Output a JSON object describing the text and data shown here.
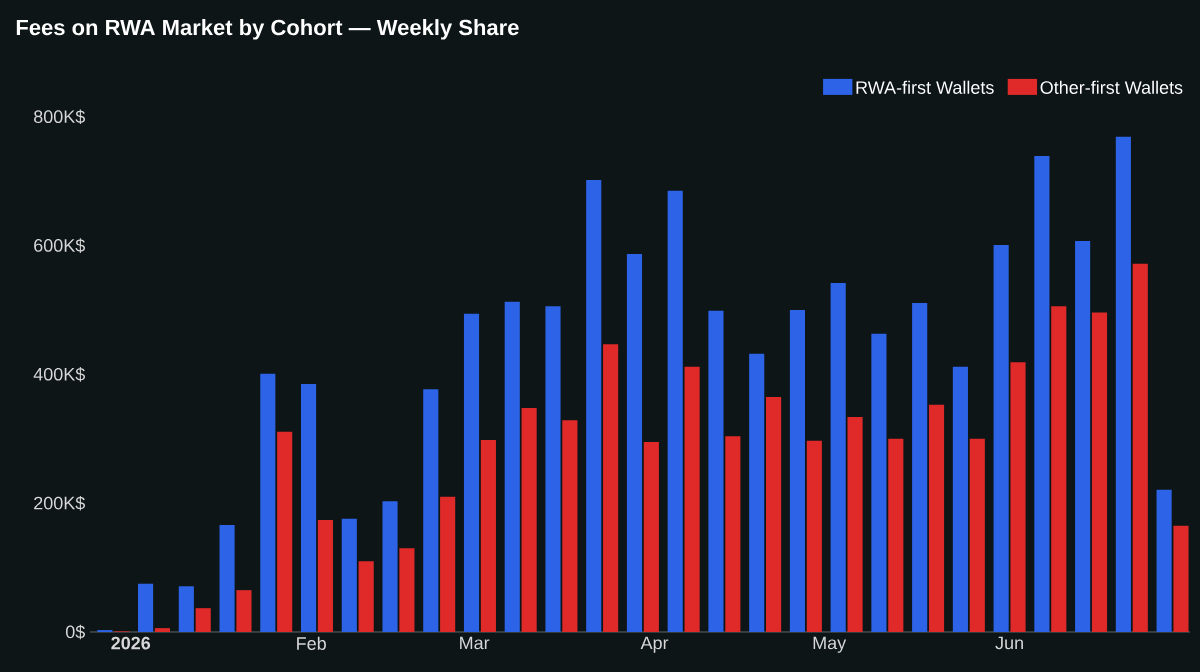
{
  "chart_data": {
    "type": "bar",
    "title": "Fees on RWA Market by Cohort — Weekly Share",
    "x": [
      "2025-12-29",
      "2026-01-05",
      "2026-01-12",
      "2026-01-19",
      "2026-01-26",
      "2026-02-02",
      "2026-02-09",
      "2026-02-16",
      "2026-02-23",
      "2026-03-02",
      "2026-03-09",
      "2026-03-16",
      "2026-03-23",
      "2026-03-30",
      "2026-04-06",
      "2026-04-13",
      "2026-04-20",
      "2026-04-27",
      "2026-05-04",
      "2026-05-11",
      "2026-05-18",
      "2026-05-25",
      "2026-06-01",
      "2026-06-08",
      "2026-06-15",
      "2026-06-22",
      "2026-06-29"
    ],
    "series": [
      {
        "name": "RWA-first Wallets",
        "color": "#2d63e6",
        "values": [
          3,
          75,
          71,
          166,
          401,
          385,
          176,
          203,
          377,
          494,
          513,
          506,
          702,
          587,
          685,
          499,
          432,
          500,
          542,
          463,
          511,
          412,
          601,
          739,
          607,
          769,
          221
        ]
      },
      {
        "name": "Other-first Wallets",
        "color": "#e02a2a",
        "values": [
          1,
          6,
          37,
          65,
          311,
          174,
          110,
          130,
          210,
          298,
          348,
          329,
          447,
          295,
          412,
          304,
          365,
          297,
          334,
          300,
          353,
          300,
          419,
          506,
          496,
          572,
          165
        ]
      }
    ],
    "xlim": [
      "2025-12-25",
      "2026-07-02"
    ],
    "xticks": [
      {
        "value": "2026-01-01",
        "label": "2026"
      },
      {
        "value": "2026-02-01",
        "label": "Feb"
      },
      {
        "value": "2026-03-01",
        "label": "Mar"
      },
      {
        "value": "2026-04-01",
        "label": "Apr"
      },
      {
        "value": "2026-05-01",
        "label": "May"
      },
      {
        "value": "2026-06-01",
        "label": "Jun"
      }
    ],
    "ylim": [
      0,
      800
    ],
    "yticks": [
      {
        "value": 0,
        "label": "0$"
      },
      {
        "value": 200,
        "label": "200K$"
      },
      {
        "value": 400,
        "label": "400K$"
      },
      {
        "value": 600,
        "label": "600K$"
      },
      {
        "value": 800,
        "label": "800K$"
      }
    ],
    "legend": "top right",
    "grid": false
  }
}
